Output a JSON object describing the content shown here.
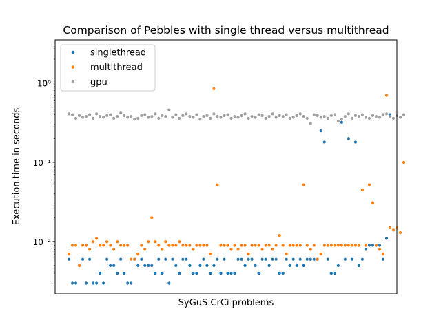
{
  "chart_data": {
    "type": "scatter",
    "title": "Comparison of Pebbles with single thread versus multithread",
    "xlabel": "SyGuS CrCi problems",
    "ylabel": "Execution time in seconds",
    "yscale": "log",
    "ylim": [
      0.0022,
      3.5
    ],
    "xlim": [
      -4,
      95
    ],
    "xticks": [],
    "yticks": [
      {
        "value": 0.01,
        "label": "10⁻²"
      },
      {
        "value": 0.1,
        "label": "10⁻¹"
      },
      {
        "value": 1,
        "label": "10⁰"
      }
    ],
    "legend": {
      "position": "top-left"
    },
    "series": [
      {
        "name": "singlethread",
        "color": "#1f77b4",
        "values": [
          0.006,
          0.003,
          0.003,
          0.005,
          0.006,
          0.003,
          0.006,
          0.003,
          0.003,
          0.004,
          0.003,
          0.006,
          0.005,
          0.005,
          0.004,
          0.006,
          0.004,
          0.003,
          0.003,
          0.006,
          0.005,
          0.006,
          0.005,
          0.005,
          0.005,
          0.004,
          0.006,
          0.004,
          0.006,
          0.003,
          0.006,
          0.005,
          0.004,
          0.006,
          0.006,
          0.005,
          0.004,
          0.004,
          0.005,
          0.006,
          0.005,
          0.004,
          0.005,
          0.006,
          0.004,
          0.006,
          0.004,
          0.004,
          0.004,
          0.006,
          0.006,
          0.005,
          0.006,
          0.006,
          0.005,
          0.004,
          0.006,
          0.006,
          0.005,
          0.006,
          0.006,
          0.004,
          0.004,
          0.006,
          0.005,
          0.006,
          0.005,
          0.006,
          0.005,
          0.006,
          0.006,
          0.006,
          0.006,
          0.25,
          0.18,
          0.006,
          0.004,
          0.004,
          0.005,
          0.32,
          0.006,
          0.2,
          0.006,
          0.18,
          0.005,
          0.006,
          0.008,
          0.009,
          0.009,
          0.009,
          0.009,
          0.006,
          0.011,
          0.4
        ]
      },
      {
        "name": "multithread",
        "color": "#ff7f0e",
        "values": [
          0.007,
          0.009,
          0.009,
          0.005,
          0.009,
          0.009,
          0.008,
          0.01,
          0.011,
          0.009,
          0.009,
          0.01,
          0.009,
          0.008,
          0.01,
          0.009,
          0.009,
          0.009,
          0.006,
          0.006,
          0.007,
          0.009,
          0.008,
          0.01,
          0.02,
          0.01,
          0.009,
          0.008,
          0.01,
          0.009,
          0.009,
          0.009,
          0.01,
          0.009,
          0.009,
          0.009,
          0.008,
          0.009,
          0.009,
          0.009,
          0.009,
          0.007,
          0.85,
          0.052,
          0.009,
          0.009,
          0.009,
          0.008,
          0.009,
          0.008,
          0.009,
          0.009,
          0.007,
          0.009,
          0.009,
          0.009,
          0.008,
          0.009,
          0.009,
          0.008,
          0.009,
          0.012,
          0.009,
          0.007,
          0.009,
          0.009,
          0.009,
          0.009,
          0.052,
          0.009,
          0.008,
          0.009,
          0.006,
          0.007,
          0.009,
          0.009,
          0.009,
          0.009,
          0.009,
          0.009,
          0.009,
          0.009,
          0.009,
          0.009,
          0.009,
          0.045,
          0.009,
          0.052,
          0.031,
          0.009,
          0.008,
          0.007,
          0.7,
          0.015,
          0.014,
          0.015,
          0.013,
          0.1
        ]
      },
      {
        "name": "gpu",
        "color": "#a0a0a0",
        "values": [
          0.41,
          0.4,
          0.36,
          0.39,
          0.37,
          0.38,
          0.4,
          0.36,
          0.41,
          0.38,
          0.37,
          0.39,
          0.4,
          0.36,
          0.38,
          0.42,
          0.39,
          0.37,
          0.38,
          0.35,
          0.36,
          0.39,
          0.4,
          0.37,
          0.38,
          0.41,
          0.36,
          0.39,
          0.38,
          0.46,
          0.37,
          0.4,
          0.36,
          0.39,
          0.41,
          0.38,
          0.37,
          0.4,
          0.35,
          0.38,
          0.39,
          0.36,
          0.41,
          0.38,
          0.37,
          0.39,
          0.4,
          0.36,
          0.38,
          0.37,
          0.39,
          0.41,
          0.36,
          0.38,
          0.37,
          0.4,
          0.39,
          0.36,
          0.38,
          0.41,
          0.37,
          0.39,
          0.38,
          0.4,
          0.36,
          0.37,
          0.39,
          0.41,
          0.38,
          0.36,
          0.31,
          0.4,
          0.39,
          0.37,
          0.38,
          0.36,
          0.39,
          0.4,
          0.33,
          0.35,
          0.38,
          0.41,
          0.36,
          0.39,
          0.38,
          0.4,
          0.37,
          0.36,
          0.39,
          0.38,
          0.37,
          0.4,
          0.41,
          0.38,
          0.36,
          0.39,
          0.37,
          0.4
        ]
      }
    ]
  }
}
